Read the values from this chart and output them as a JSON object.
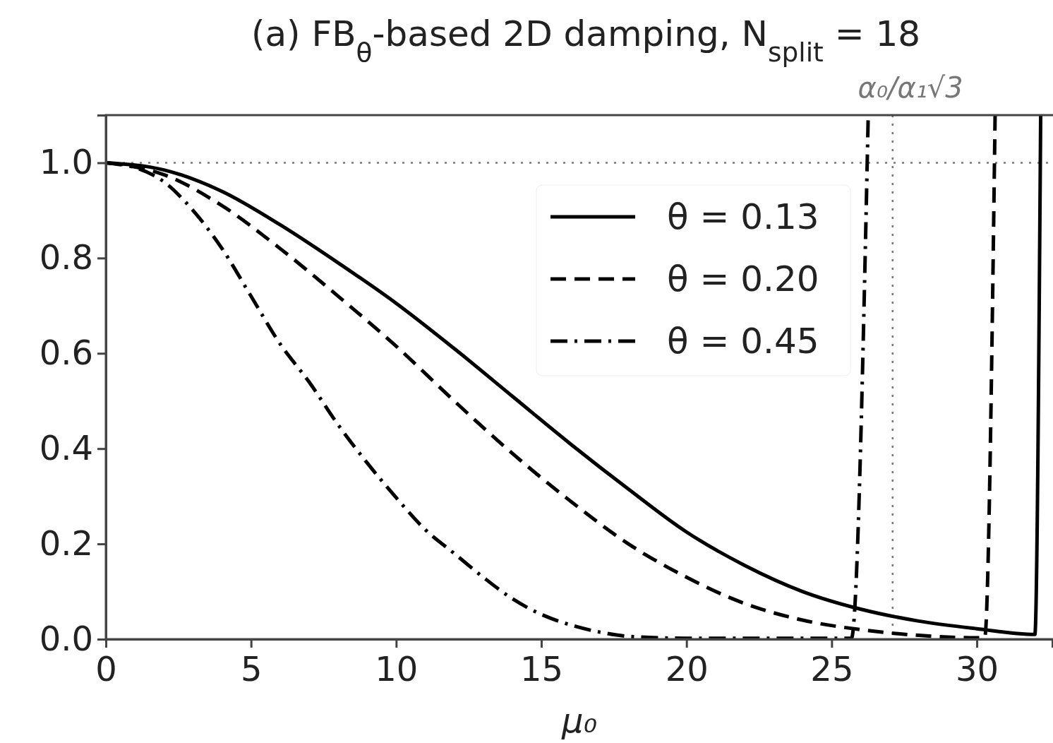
{
  "chart_data": {
    "type": "line",
    "title": "(a) FB$_{θ}$-based 2D damping, N$_{split}$ = 18",
    "xlabel": "μ₀",
    "xlim": [
      0,
      32.6
    ],
    "ylim": [
      0,
      1.1
    ],
    "xticks": [
      0,
      5,
      10,
      15,
      20,
      25,
      30
    ],
    "yticks": [
      {
        "value": 0,
        "label": "0.0"
      },
      {
        "value": 0.2,
        "label": "0.2"
      },
      {
        "value": 0.4,
        "label": "0.4"
      },
      {
        "value": 0.6,
        "label": "0.6"
      },
      {
        "value": 0.8,
        "label": "0.8"
      },
      {
        "value": 1,
        "label": "1.0"
      }
    ],
    "grid": false,
    "legend": "top right",
    "marker": "none",
    "ref_lines": [
      {
        "axis": "y",
        "value": 1,
        "line_style": "dotted",
        "color": "#777777"
      },
      {
        "axis": "x",
        "value": 27.1,
        "label": "α₀/α₁√3",
        "line_style": "dotted",
        "color": "#777777"
      }
    ],
    "series": [
      {
        "name": "θ = 0.13",
        "color": "#000000",
        "line_style": "solid",
        "x": [
          0,
          2,
          4,
          6,
          8,
          10,
          12,
          14,
          16,
          18,
          20,
          22,
          24,
          26,
          28,
          30,
          32,
          32.2
        ],
        "values": [
          1,
          0.985,
          0.94,
          0.87,
          0.79,
          0.705,
          0.61,
          0.51,
          0.41,
          0.315,
          0.225,
          0.155,
          0.1,
          0.063,
          0.038,
          0.022,
          0.01,
          1.1
        ]
      },
      {
        "name": "θ = 0.20",
        "color": "#000000",
        "line_style": "dashed",
        "x": [
          0,
          2,
          4,
          6,
          8,
          10,
          12,
          14,
          16,
          18,
          20,
          22,
          24,
          26,
          28,
          30,
          30.27,
          30.63
        ],
        "values": [
          1,
          0.975,
          0.91,
          0.82,
          0.72,
          0.615,
          0.5,
          0.39,
          0.29,
          0.2,
          0.13,
          0.075,
          0.04,
          0.02,
          0.008,
          0.003,
          0.003,
          1.1
        ]
      },
      {
        "name": "θ = 0.45",
        "color": "#000000",
        "line_style": "dashdot",
        "x": [
          0,
          1,
          2,
          3,
          4,
          5,
          6,
          7,
          8,
          9,
          10,
          11,
          12,
          13,
          14,
          15,
          16,
          17,
          18,
          20,
          25.68,
          26.26
        ],
        "values": [
          1,
          0.99,
          0.96,
          0.9,
          0.82,
          0.72,
          0.62,
          0.54,
          0.45,
          0.37,
          0.297,
          0.23,
          0.18,
          0.13,
          0.085,
          0.052,
          0.03,
          0.015,
          0.006,
          0.002,
          0.002,
          1.1
        ]
      }
    ]
  }
}
